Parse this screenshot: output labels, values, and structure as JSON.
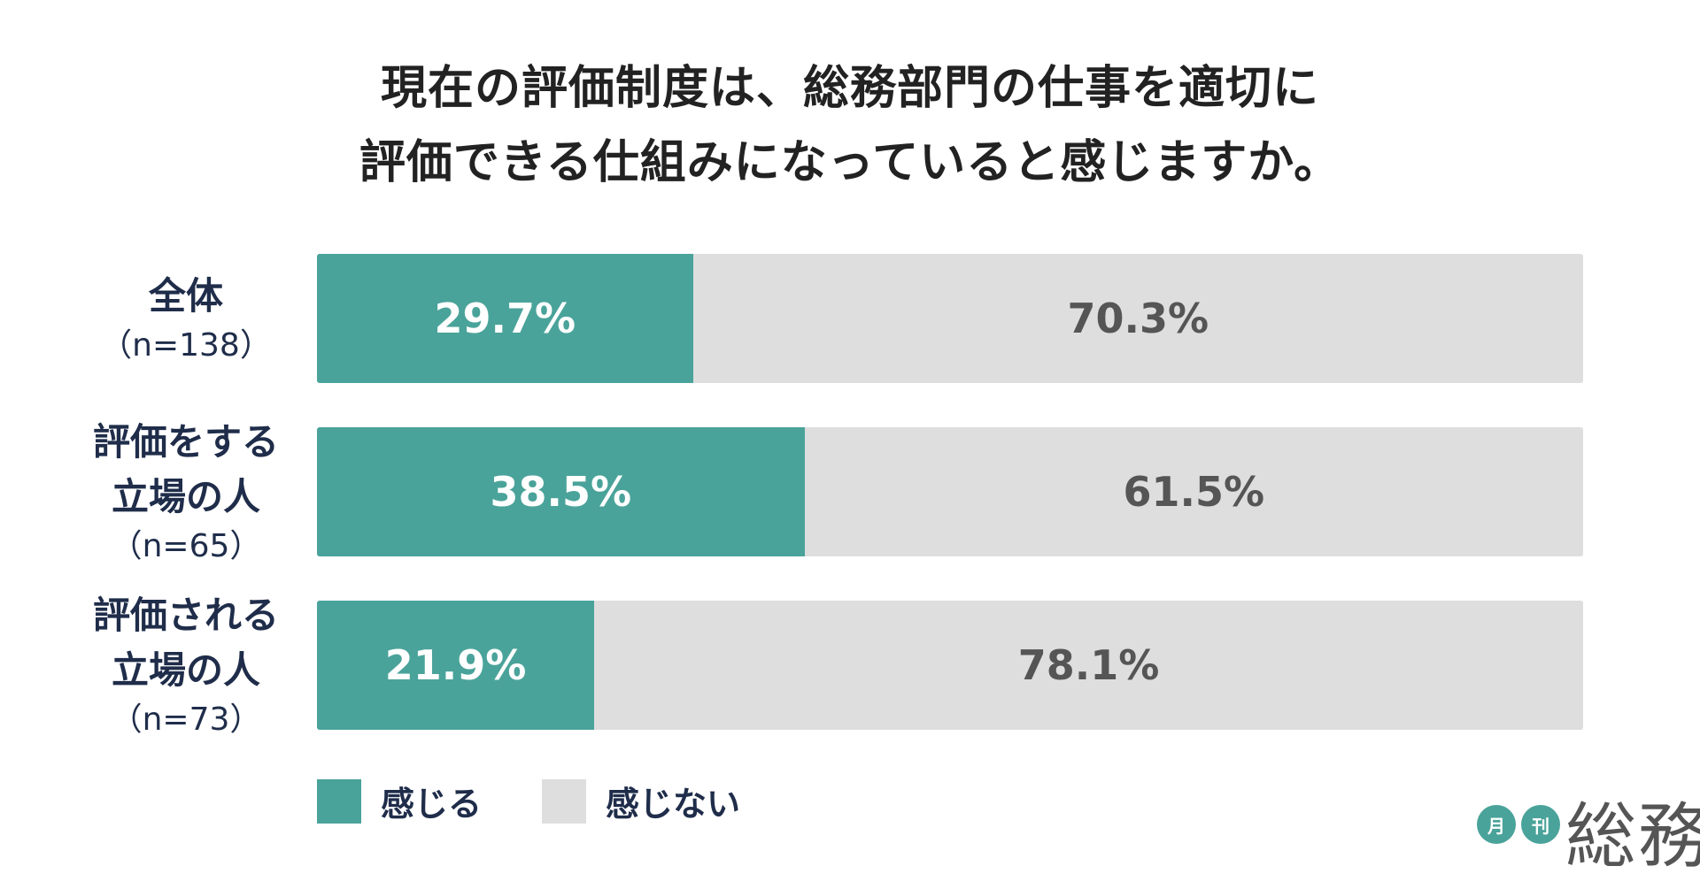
{
  "title": {
    "line1": "現在の評価制度は、総務部門の仕事を適切に",
    "line2": "評価できる仕組みになっていると感じますか。"
  },
  "colors": {
    "feel": "#4aa39a",
    "not_feel": "#dedede",
    "feel_label": "#ffffff",
    "not_feel_label": "#555555",
    "row_label": "#1f2d4a"
  },
  "chart_data": {
    "type": "bar",
    "orientation": "horizontal",
    "stacked": true,
    "xlim": [
      0,
      100
    ],
    "categories": [
      {
        "lines": [
          "全体"
        ],
        "n": "（n=138）"
      },
      {
        "lines": [
          "評価をする",
          "立場の人"
        ],
        "n": "（n=65）"
      },
      {
        "lines": [
          "評価される",
          "立場の人"
        ],
        "n": "（n=73）"
      }
    ],
    "series": [
      {
        "name": "感じる",
        "values": [
          29.7,
          38.5,
          21.9
        ],
        "labels": [
          "29.7%",
          "38.5%",
          "21.9%"
        ]
      },
      {
        "name": "感じない",
        "values": [
          70.3,
          61.5,
          78.1
        ],
        "labels": [
          "70.3%",
          "61.5%",
          "78.1%"
        ]
      }
    ],
    "legend_position": "bottom-left"
  },
  "logo": {
    "badge1": "月",
    "badge2": "刊",
    "text": "総務"
  }
}
